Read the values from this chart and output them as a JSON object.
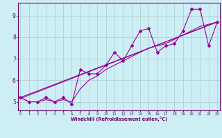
{
  "xlabel": "Windchill (Refroidissement éolien,°C)",
  "bg_color": "#cdeef5",
  "line_color": "#990099",
  "grid_color": "#aaccd0",
  "axis_color": "#660066",
  "series_main": [
    [
      0,
      5.2
    ],
    [
      1,
      5.0
    ],
    [
      2,
      5.0
    ],
    [
      3,
      5.2
    ],
    [
      4,
      5.0
    ],
    [
      5,
      5.2
    ],
    [
      6,
      4.9
    ],
    [
      7,
      6.5
    ],
    [
      8,
      6.3
    ],
    [
      9,
      6.3
    ],
    [
      10,
      6.7
    ],
    [
      11,
      7.3
    ],
    [
      12,
      6.9
    ],
    [
      13,
      7.6
    ],
    [
      14,
      8.3
    ],
    [
      15,
      8.4
    ],
    [
      16,
      7.3
    ],
    [
      17,
      7.6
    ],
    [
      18,
      7.7
    ],
    [
      19,
      8.3
    ],
    [
      20,
      9.3
    ],
    [
      21,
      9.3
    ],
    [
      22,
      7.6
    ],
    [
      23,
      8.7
    ]
  ],
  "series_smooth": [
    [
      0,
      5.2
    ],
    [
      1,
      5.0
    ],
    [
      2,
      5.0
    ],
    [
      3,
      5.1
    ],
    [
      4,
      5.0
    ],
    [
      5,
      5.1
    ],
    [
      6,
      5.0
    ],
    [
      7,
      5.6
    ],
    [
      8,
      6.0
    ],
    [
      9,
      6.2
    ],
    [
      10,
      6.5
    ],
    [
      11,
      6.7
    ],
    [
      12,
      6.9
    ],
    [
      13,
      7.1
    ],
    [
      14,
      7.3
    ],
    [
      15,
      7.5
    ],
    [
      16,
      7.6
    ],
    [
      17,
      7.7
    ],
    [
      18,
      7.9
    ],
    [
      19,
      8.1
    ],
    [
      20,
      8.3
    ],
    [
      21,
      8.5
    ],
    [
      22,
      8.6
    ],
    [
      23,
      8.7
    ]
  ],
  "series_linear": [
    [
      0,
      5.15
    ],
    [
      23,
      8.72
    ]
  ],
  "series_linear2": [
    [
      0,
      5.2
    ],
    [
      23,
      8.7
    ]
  ],
  "xlim": [
    -0.3,
    23.3
  ],
  "ylim": [
    4.6,
    9.6
  ],
  "yticks": [
    5,
    6,
    7,
    8,
    9
  ],
  "xticks": [
    0,
    1,
    2,
    3,
    4,
    5,
    6,
    7,
    8,
    9,
    10,
    11,
    12,
    13,
    14,
    15,
    16,
    17,
    18,
    19,
    20,
    21,
    22,
    23
  ]
}
